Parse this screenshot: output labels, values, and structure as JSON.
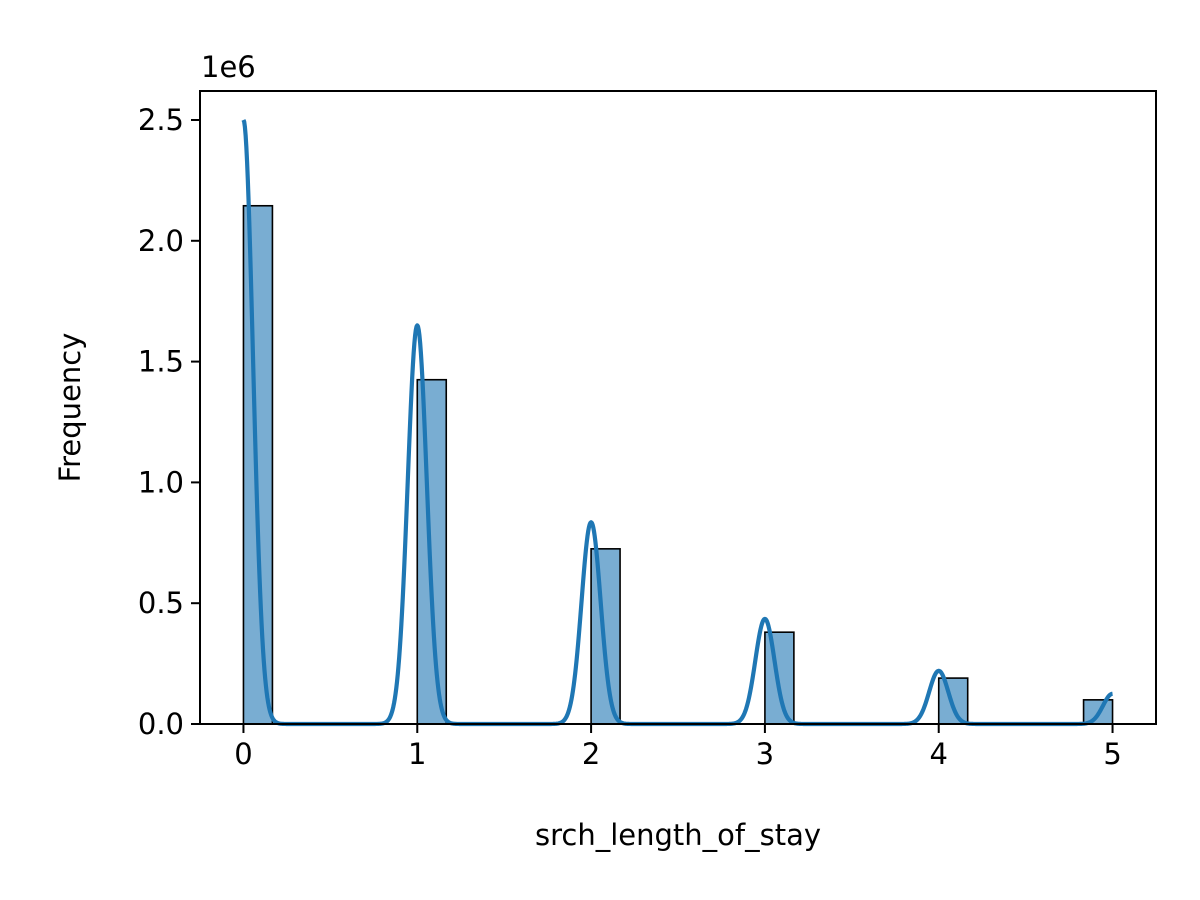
{
  "chart_data": {
    "type": "bar",
    "subtype": "histogram-with-kde",
    "xlabel": "srch_length_of_stay",
    "ylabel": "Frequency",
    "y_offset_label": "1e6",
    "xlim": [
      -0.25,
      5.25
    ],
    "ylim": [
      0,
      2620000
    ],
    "x_ticks": [
      0,
      1,
      2,
      3,
      4,
      5
    ],
    "x_tick_labels": [
      "0",
      "1",
      "2",
      "3",
      "4",
      "5"
    ],
    "y_ticks": [
      0,
      500000,
      1000000,
      1500000,
      2000000,
      2500000
    ],
    "y_tick_labels": [
      "0.0",
      "0.5",
      "1.0",
      "1.5",
      "2.0",
      "2.5"
    ],
    "grid": false,
    "bin_width": 0.1667,
    "bars": [
      {
        "x_start": 0.0,
        "x_end": 0.1667,
        "value": 2145000
      },
      {
        "x_start": 1.0,
        "x_end": 1.1667,
        "value": 1425000
      },
      {
        "x_start": 2.0,
        "x_end": 2.1667,
        "value": 725000
      },
      {
        "x_start": 3.0,
        "x_end": 3.1667,
        "value": 380000
      },
      {
        "x_start": 4.0,
        "x_end": 4.1667,
        "value": 190000
      },
      {
        "x_start": 4.8333,
        "x_end": 5.0,
        "value": 100000
      }
    ],
    "kde_peaks": [
      {
        "x": 0,
        "y": 2500000
      },
      {
        "x": 1,
        "y": 1650000
      },
      {
        "x": 2,
        "y": 835000
      },
      {
        "x": 3,
        "y": 435000
      },
      {
        "x": 4,
        "y": 220000
      },
      {
        "x": 5,
        "y": 125000
      }
    ],
    "kde_sigma": 0.055,
    "colors": {
      "bar_fill": "#1f77b4",
      "bar_fill_opacity": 0.6,
      "bar_edge": "#000000",
      "kde_line": "#1f77b4",
      "axes": "#000000"
    }
  }
}
